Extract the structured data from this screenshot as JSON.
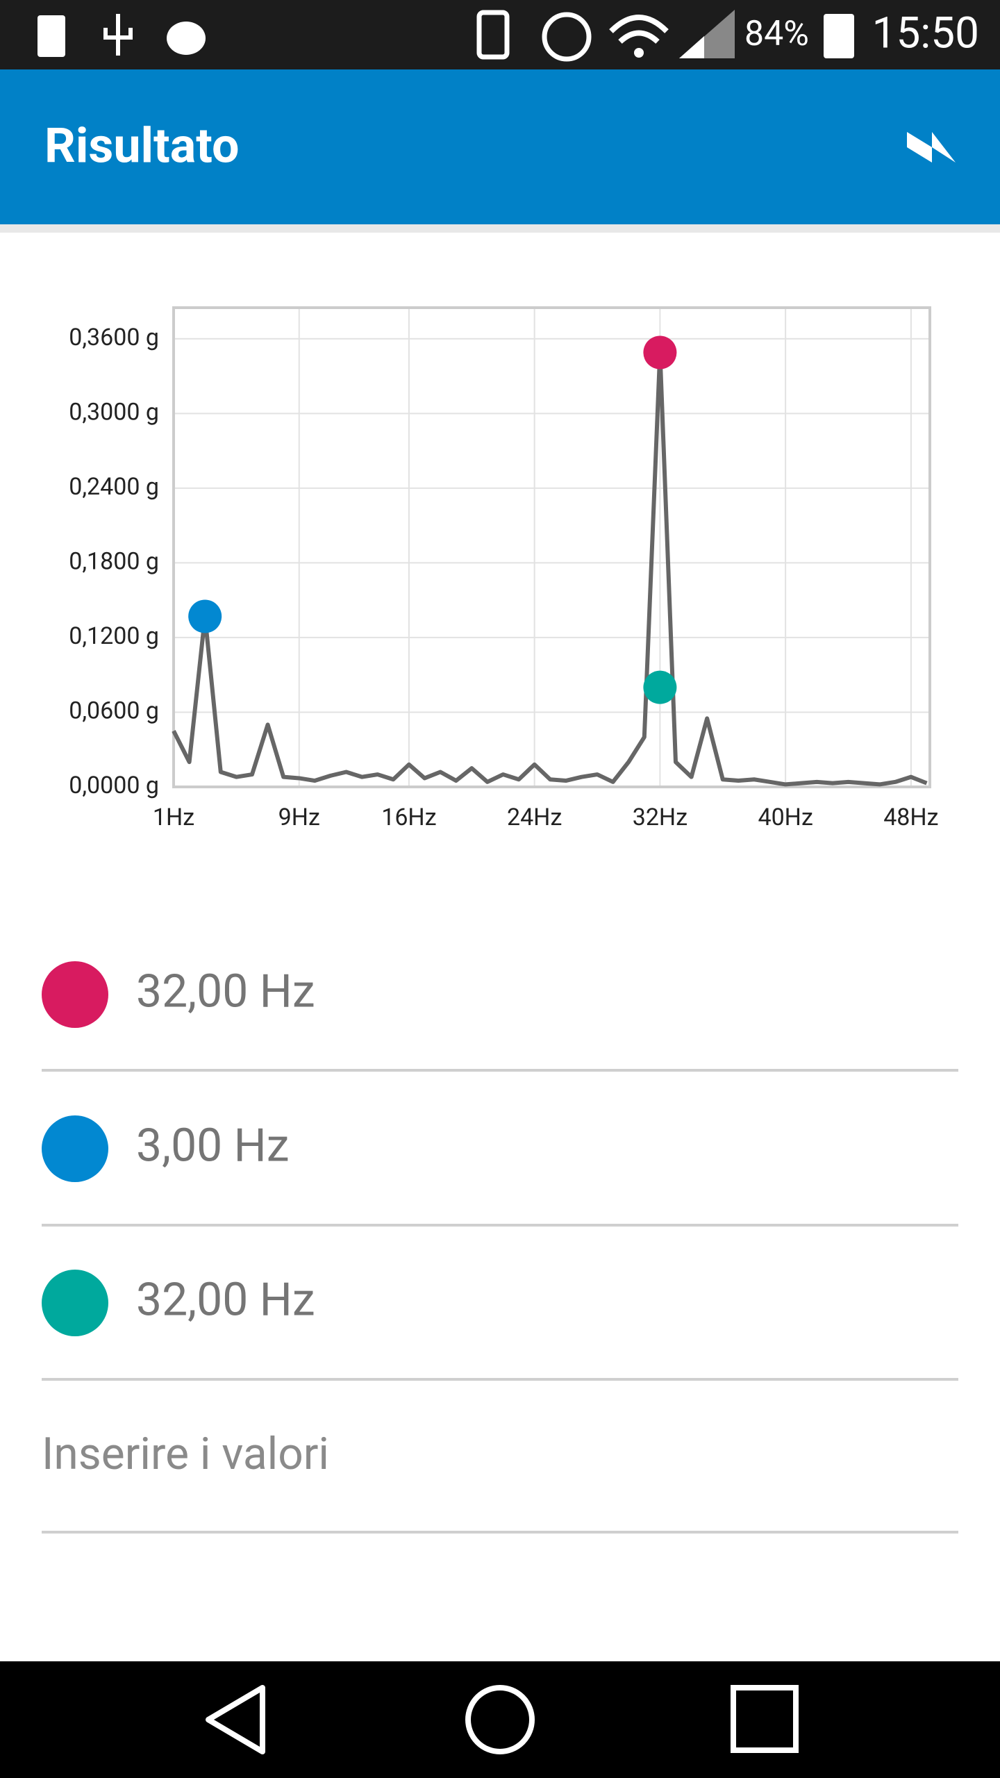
{
  "status_bar": {
    "battery": "84%",
    "time": "15:50"
  },
  "app_bar": {
    "title": "Risultato"
  },
  "chart_data": {
    "type": "line",
    "x": [
      1,
      2,
      3,
      4,
      5,
      6,
      7,
      8,
      9,
      10,
      11,
      12,
      13,
      14,
      15,
      16,
      17,
      18,
      19,
      20,
      21,
      22,
      23,
      24,
      25,
      26,
      27,
      28,
      29,
      30,
      31,
      32,
      33,
      34,
      35,
      36,
      37,
      38,
      39,
      40,
      41,
      42,
      43,
      44,
      45,
      46,
      47,
      48,
      49
    ],
    "series": [
      {
        "color": "#666666",
        "values": [
          0.045,
          0.02,
          0.137,
          0.012,
          0.008,
          0.01,
          0.05,
          0.008,
          0.007,
          0.005,
          0.009,
          0.012,
          0.008,
          0.01,
          0.006,
          0.018,
          0.007,
          0.012,
          0.005,
          0.015,
          0.004,
          0.01,
          0.006,
          0.018,
          0.006,
          0.005,
          0.008,
          0.01,
          0.004,
          0.02,
          0.04,
          0.349,
          0.02,
          0.008,
          0.055,
          0.006,
          0.005,
          0.006,
          0.004,
          0.002,
          0.003,
          0.004,
          0.003,
          0.004,
          0.003,
          0.002,
          0.004,
          0.008,
          0.003
        ]
      }
    ],
    "markers": {
      "x": [
        32,
        3,
        32
      ],
      "values": [
        0.349,
        0.137,
        0.08
      ],
      "colors": [
        "#d81b60",
        "#0288d1",
        "#00a99d"
      ]
    },
    "xlim": [
      1,
      49.2
    ],
    "ylim": [
      0,
      0.385
    ],
    "xticks": [
      {
        "value": 1,
        "label": "1Hz"
      },
      {
        "value": 9,
        "label": "9Hz"
      },
      {
        "value": 16,
        "label": "16Hz"
      },
      {
        "value": 24,
        "label": "24Hz"
      },
      {
        "value": 32,
        "label": "32Hz"
      },
      {
        "value": 40,
        "label": "40Hz"
      },
      {
        "value": 48,
        "label": "48Hz"
      }
    ],
    "yticks": [
      {
        "value": 0,
        "label": "0,0000 g"
      },
      {
        "value": 0.06,
        "label": "0,0600 g"
      },
      {
        "value": 0.12,
        "label": "0,1200 g"
      },
      {
        "value": 0.18,
        "label": "0,1800 g"
      },
      {
        "value": 0.24,
        "label": "0,2400 g"
      },
      {
        "value": 0.3,
        "label": "0,3000 g"
      },
      {
        "value": 0.36,
        "label": "0,3600 g"
      }
    ],
    "grid": true
  },
  "results": [
    "32,00 Hz",
    "3,00 Hz",
    "32,00 Hz"
  ],
  "input_placeholder": "Inserire i valori"
}
